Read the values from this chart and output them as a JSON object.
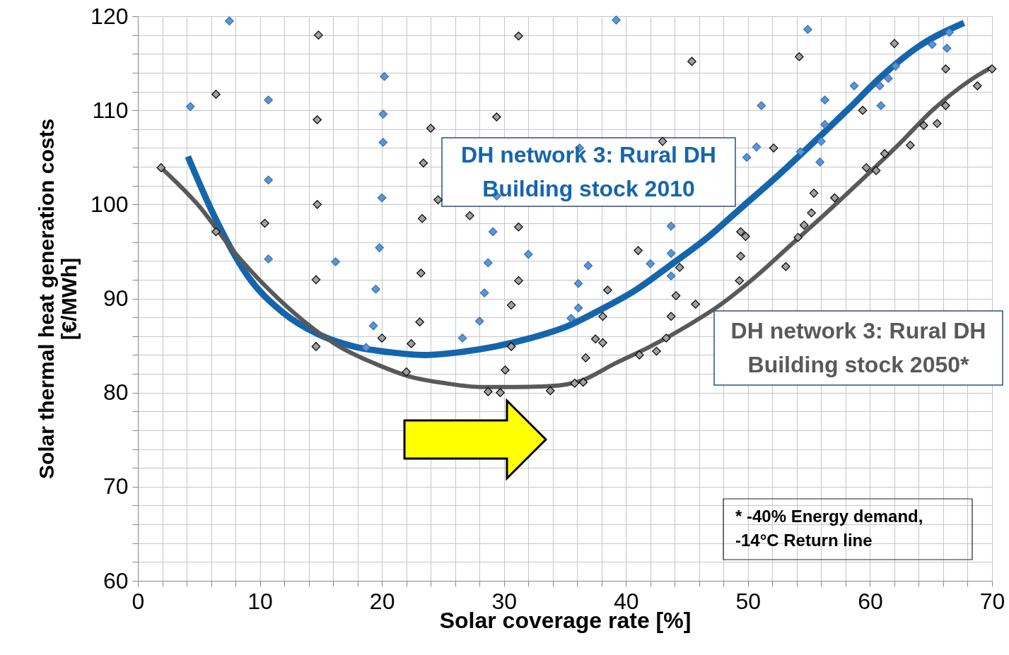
{
  "chart_data": {
    "type": "scatter",
    "xlabel": "Solar coverage rate [%]",
    "ylabel": "Solar thermal heat generation costs\n[€/MWh]",
    "xlim": [
      0,
      70
    ],
    "ylim": [
      60,
      120
    ],
    "xticks": [
      0,
      {
        "value": 2,
        "label": null
      },
      {
        "value": 4,
        "label": null
      },
      {
        "value": 6,
        "label": null
      },
      {
        "value": 8,
        "label": null
      },
      10,
      {
        "value": 12,
        "label": null
      },
      {
        "value": 14,
        "label": null
      },
      {
        "value": 16,
        "label": null
      },
      {
        "value": 18,
        "label": null
      },
      20,
      {
        "value": 22,
        "label": null
      },
      {
        "value": 24,
        "label": null
      },
      {
        "value": 26,
        "label": null
      },
      {
        "value": 28,
        "label": null
      },
      30,
      {
        "value": 32,
        "label": null
      },
      {
        "value": 34,
        "label": null
      },
      {
        "value": 36,
        "label": null
      },
      {
        "value": 38,
        "label": null
      },
      40,
      {
        "value": 42,
        "label": null
      },
      {
        "value": 44,
        "label": null
      },
      {
        "value": 46,
        "label": null
      },
      {
        "value": 48,
        "label": null
      },
      50,
      {
        "value": 52,
        "label": null
      },
      {
        "value": 54,
        "label": null
      },
      {
        "value": 56,
        "label": null
      },
      {
        "value": 58,
        "label": null
      },
      60,
      {
        "value": 62,
        "label": null
      },
      {
        "value": 64,
        "label": null
      },
      {
        "value": 66,
        "label": null
      },
      {
        "value": 68,
        "label": null
      },
      70
    ],
    "yticks": [
      60,
      {
        "value": 62,
        "label": null
      },
      {
        "value": 64,
        "label": null
      },
      {
        "value": 66,
        "label": null
      },
      {
        "value": 68,
        "label": null
      },
      70,
      {
        "value": 72,
        "label": null
      },
      {
        "value": 74,
        "label": null
      },
      {
        "value": 76,
        "label": null
      },
      {
        "value": 78,
        "label": null
      },
      80,
      {
        "value": 82,
        "label": null
      },
      {
        "value": 84,
        "label": null
      },
      {
        "value": 86,
        "label": null
      },
      {
        "value": 88,
        "label": null
      },
      90,
      {
        "value": 92,
        "label": null
      },
      {
        "value": 94,
        "label": null
      },
      {
        "value": 96,
        "label": null
      },
      {
        "value": 98,
        "label": null
      },
      100,
      {
        "value": 102,
        "label": null
      },
      {
        "value": 104,
        "label": null
      },
      {
        "value": 106,
        "label": null
      },
      {
        "value": 108,
        "label": null
      },
      110,
      {
        "value": 112,
        "label": null
      },
      {
        "value": 114,
        "label": null
      },
      {
        "value": 116,
        "label": null
      },
      {
        "value": 118,
        "label": null
      },
      120
    ],
    "grid": true,
    "legend": false,
    "series": [
      {
        "type": "scatter",
        "marker": "diamond",
        "color": "#5a96d6",
        "x": [
          4.3,
          7.5,
          10.7,
          10.7,
          10.7,
          16.2,
          20.2,
          20.1,
          20.1,
          20.0,
          19.8,
          19.5,
          19.3,
          18.7,
          26.6,
          28.0,
          28.4,
          28.7,
          29.1,
          29.4,
          32.0,
          36.2,
          36.1,
          36.1,
          36.9,
          35.5,
          39.2,
          43.7,
          43.7,
          42.0,
          43.7,
          49.9,
          51.1,
          50.7,
          54.3,
          54.9,
          56.3,
          56.3,
          56.0,
          55.9,
          58.7,
          60.8,
          61.5,
          62.1,
          60.9,
          65.1,
          66.3,
          66.5
        ],
        "values": [
          110.4,
          119.5,
          111.1,
          102.6,
          94.2,
          93.9,
          113.6,
          109.6,
          106.6,
          100.7,
          95.4,
          91.0,
          87.1,
          84.8,
          85.8,
          87.6,
          90.6,
          93.8,
          97.1,
          100.9,
          94.7,
          106.0,
          91.6,
          89.0,
          93.5,
          87.9,
          119.6,
          97.7,
          94.8,
          93.7,
          92.4,
          105.0,
          110.5,
          106.1,
          105.6,
          118.6,
          111.1,
          108.5,
          106.7,
          104.5,
          112.6,
          112.6,
          113.4,
          114.7,
          110.5,
          117.0,
          116.6,
          118.3
        ]
      },
      {
        "type": "scatter",
        "marker": "diamond",
        "color": "#a0a0a0",
        "x": [
          1.9,
          6.4,
          6.4,
          10.4,
          14.8,
          14.7,
          14.7,
          14.6,
          14.6,
          20.0,
          22.0,
          22.4,
          23.1,
          23.2,
          23.3,
          23.4,
          24.0,
          24.6,
          27.2,
          29.4,
          31.2,
          31.2,
          31.2,
          30.6,
          30.1,
          30.6,
          28.7,
          29.7,
          33.8,
          35.8,
          36.5,
          36.7,
          37.5,
          38.1,
          38.1,
          38.5,
          41.0,
          41.1,
          42.5,
          43.0,
          43.3,
          43.7,
          44.1,
          44.4,
          45.4,
          45.7,
          49.4,
          49.8,
          49.4,
          49.3,
          52.1,
          53.1,
          54.2,
          54.1,
          54.6,
          55.2,
          55.4,
          57.1,
          59.7,
          60.5,
          59.4,
          61.2,
          62.0,
          63.3,
          64.4,
          65.5,
          66.2,
          66.2,
          68.8,
          70.0
        ],
        "values": [
          103.9,
          111.7,
          97.1,
          98.0,
          118.0,
          109.0,
          100.0,
          92.0,
          84.9,
          85.8,
          82.2,
          85.2,
          87.5,
          92.7,
          98.5,
          104.4,
          108.1,
          100.5,
          98.8,
          109.3,
          117.9,
          97.6,
          91.9,
          89.3,
          82.4,
          84.9,
          80.1,
          80.0,
          80.2,
          81.0,
          81.1,
          83.7,
          85.7,
          85.3,
          88.1,
          90.9,
          95.1,
          84.0,
          84.4,
          106.7,
          85.8,
          88.1,
          90.3,
          93.3,
          115.2,
          89.4,
          97.1,
          96.6,
          94.5,
          91.9,
          106.0,
          93.4,
          115.7,
          96.5,
          97.8,
          99.1,
          101.2,
          100.7,
          103.9,
          103.6,
          110.0,
          105.4,
          117.1,
          106.3,
          108.4,
          108.6,
          114.4,
          110.5,
          112.6,
          114.4
        ]
      },
      {
        "type": "line",
        "name": "DH network 3: Rural DH\nBuilding stock 2010",
        "color": "#1565ad",
        "x": [
          4.1,
          6.1,
          9.0,
          11.9,
          14.8,
          17.7,
          20.6,
          23.5,
          26.4,
          29.3,
          32.2,
          35.1,
          37.9,
          40.8,
          43.7,
          46.6,
          49.5,
          52.4,
          55.3,
          58.2,
          61.1,
          64.0,
          67.7
        ],
        "values": [
          105.1,
          99.2,
          92.4,
          88.5,
          86.2,
          84.9,
          84.3,
          84.0,
          84.3,
          84.9,
          85.8,
          87.0,
          88.8,
          90.9,
          93.6,
          96.4,
          99.7,
          103.0,
          106.5,
          110.1,
          113.8,
          116.8,
          119.3
        ]
      },
      {
        "type": "line",
        "name": "DH network 3: Rural DH\nBuilding stock 2050*",
        "color": "#595959",
        "x": [
          1.9,
          4.9,
          7.8,
          10.7,
          13.6,
          16.5,
          19.4,
          22.3,
          25.2,
          28.1,
          31.0,
          33.9,
          36.2,
          39.1,
          42.0,
          44.9,
          47.8,
          50.7,
          53.6,
          56.5,
          59.4,
          62.3,
          65.2,
          68.1,
          70.0
        ],
        "values": [
          103.9,
          100.0,
          95.1,
          91.0,
          87.6,
          84.9,
          83.1,
          81.7,
          81.0,
          80.6,
          80.6,
          80.7,
          81.2,
          83.1,
          84.9,
          87.0,
          89.4,
          92.4,
          95.8,
          99.2,
          102.7,
          106.3,
          110.1,
          113.1,
          114.6
        ]
      }
    ],
    "annotations": [
      "* -40% Energy demand,\n-14°C Return line"
    ]
  }
}
